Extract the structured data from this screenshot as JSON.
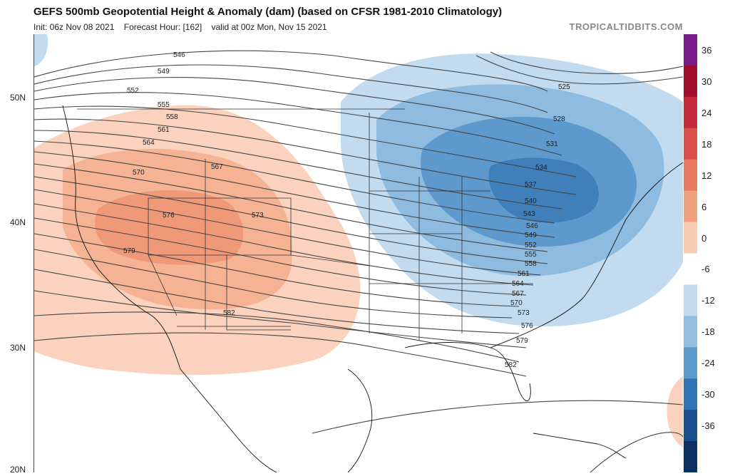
{
  "header": {
    "title": "GEFS 500mb Geopotential Height & Anomaly (dam) (based on CFSR 1981-2010 Climatology)",
    "subtitle_init": "Init: 06z Nov 08 2021",
    "subtitle_hour": "Forecast Hour: [162]",
    "subtitle_valid": "valid at 00z Mon, Nov 15 2021",
    "site": "TROPICALTIDBITS.COM"
  },
  "latitudes": [
    "50N",
    "40N",
    "30N",
    "20N"
  ],
  "contour_labels": [
    "525",
    "528",
    "531",
    "534",
    "537",
    "540",
    "543",
    "546",
    "549",
    "552",
    "555",
    "558",
    "561",
    "564",
    "567",
    "570",
    "573",
    "576",
    "579",
    "582"
  ],
  "colorbar": {
    "labels": [
      "36",
      "30",
      "24",
      "18",
      "12",
      "6",
      "0",
      "-6",
      "-12",
      "-18",
      "-24",
      "-30",
      "-36"
    ],
    "colors": [
      "#7a1b8a",
      "#a0102e",
      "#c42a3a",
      "#d9504a",
      "#e77a5f",
      "#f0a27f",
      "#f8cdb4",
      "#ffffff",
      "#c6dcee",
      "#95bfe0",
      "#5d9ccc",
      "#2f74b3",
      "#194e8f",
      "#0c2f64"
    ]
  },
  "anomaly_colors": {
    "warm_light": "#fbd2bd",
    "warm_mid": "#f5b394",
    "warm_core": "#ef9978",
    "cool_light": "#c3dbef",
    "cool_mid": "#8ebbe0",
    "cool_core": "#5d99cc",
    "cool_deep": "#3f80ba"
  }
}
